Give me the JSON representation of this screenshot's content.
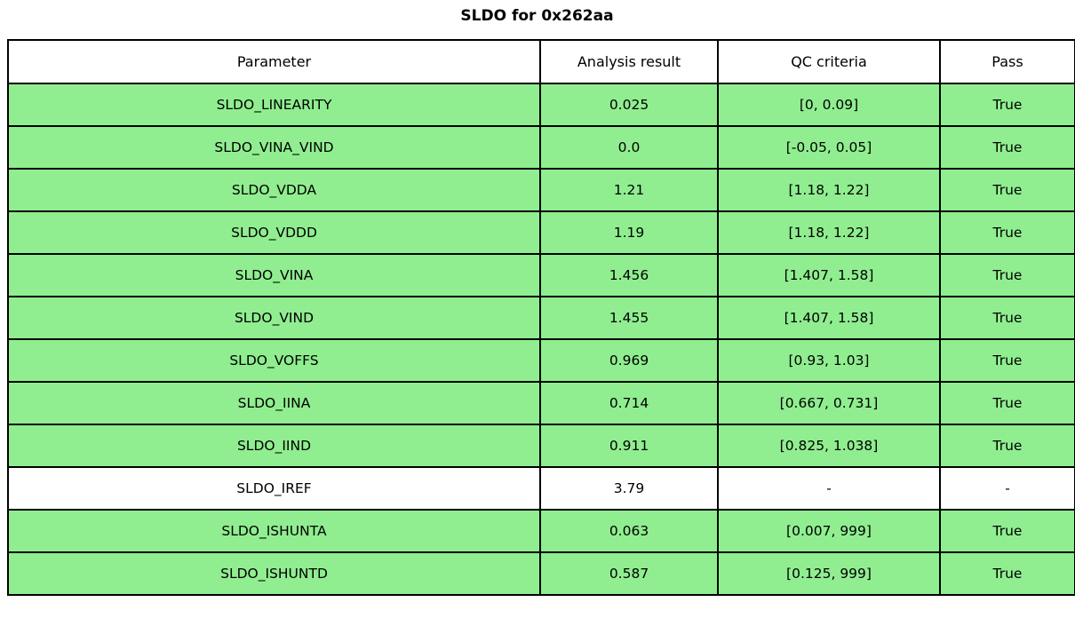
{
  "title": "SLDO for 0x262aa",
  "colors": {
    "pass_row_bg": "#90ee90",
    "neutral_row_bg": "#ffffff",
    "border": "#000000",
    "text": "#000000"
  },
  "table": {
    "columns": [
      "Parameter",
      "Analysis result",
      "QC criteria",
      "Pass"
    ],
    "rows": [
      {
        "parameter": "SLDO_LINEARITY",
        "result": "0.025",
        "criteria": "[0, 0.09]",
        "pass": "True",
        "highlight": true
      },
      {
        "parameter": "SLDO_VINA_VIND",
        "result": "0.0",
        "criteria": "[-0.05, 0.05]",
        "pass": "True",
        "highlight": true
      },
      {
        "parameter": "SLDO_VDDA",
        "result": "1.21",
        "criteria": "[1.18, 1.22]",
        "pass": "True",
        "highlight": true
      },
      {
        "parameter": "SLDO_VDDD",
        "result": "1.19",
        "criteria": "[1.18, 1.22]",
        "pass": "True",
        "highlight": true
      },
      {
        "parameter": "SLDO_VINA",
        "result": "1.456",
        "criteria": "[1.407, 1.58]",
        "pass": "True",
        "highlight": true
      },
      {
        "parameter": "SLDO_VIND",
        "result": "1.455",
        "criteria": "[1.407, 1.58]",
        "pass": "True",
        "highlight": true
      },
      {
        "parameter": "SLDO_VOFFS",
        "result": "0.969",
        "criteria": "[0.93, 1.03]",
        "pass": "True",
        "highlight": true
      },
      {
        "parameter": "SLDO_IINA",
        "result": "0.714",
        "criteria": "[0.667, 0.731]",
        "pass": "True",
        "highlight": true
      },
      {
        "parameter": "SLDO_IIND",
        "result": "0.911",
        "criteria": "[0.825, 1.038]",
        "pass": "True",
        "highlight": true
      },
      {
        "parameter": "SLDO_IREF",
        "result": "3.79",
        "criteria": "-",
        "pass": "-",
        "highlight": false
      },
      {
        "parameter": "SLDO_ISHUNTA",
        "result": "0.063",
        "criteria": "[0.007, 999]",
        "pass": "True",
        "highlight": true
      },
      {
        "parameter": "SLDO_ISHUNTD",
        "result": "0.587",
        "criteria": "[0.125, 999]",
        "pass": "True",
        "highlight": true
      }
    ]
  },
  "chart_data": {
    "type": "table",
    "title": "SLDO for 0x262aa",
    "columns": [
      "Parameter",
      "Analysis result",
      "QC criteria",
      "Pass"
    ],
    "rows": [
      [
        "SLDO_LINEARITY",
        "0.025",
        "[0, 0.09]",
        "True"
      ],
      [
        "SLDO_VINA_VIND",
        "0.0",
        "[-0.05, 0.05]",
        "True"
      ],
      [
        "SLDO_VDDA",
        "1.21",
        "[1.18, 1.22]",
        "True"
      ],
      [
        "SLDO_VDDD",
        "1.19",
        "[1.18, 1.22]",
        "True"
      ],
      [
        "SLDO_VINA",
        "1.456",
        "[1.407, 1.58]",
        "True"
      ],
      [
        "SLDO_VIND",
        "1.455",
        "[1.407, 1.58]",
        "True"
      ],
      [
        "SLDO_VOFFS",
        "0.969",
        "[0.93, 1.03]",
        "True"
      ],
      [
        "SLDO_IINA",
        "0.714",
        "[0.667, 0.731]",
        "True"
      ],
      [
        "SLDO_IIND",
        "0.911",
        "[0.825, 1.038]",
        "True"
      ],
      [
        "SLDO_IREF",
        "3.79",
        "-",
        "-"
      ],
      [
        "SLDO_ISHUNTA",
        "0.063",
        "[0.007, 999]",
        "True"
      ],
      [
        "SLDO_ISHUNTD",
        "0.587",
        "[0.125, 999]",
        "True"
      ]
    ],
    "layout_hints": {
      "row_highlight_color_pass": "#90ee90",
      "row_color_neutral": "#ffffff",
      "grid": true
    }
  }
}
